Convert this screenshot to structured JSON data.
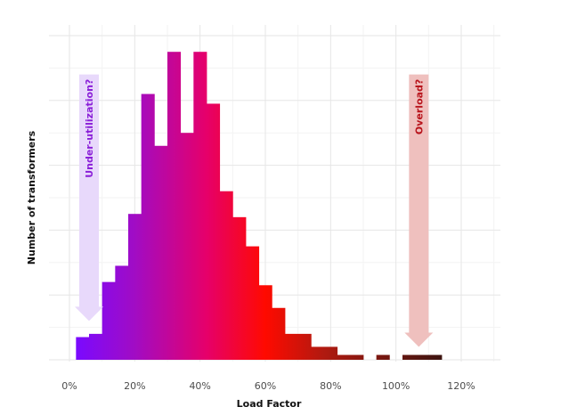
{
  "chart_data": {
    "type": "bar",
    "xlabel": "Load Factor",
    "ylabel": "Number of transformers",
    "xlim": [
      -6,
      132
    ],
    "ylim": [
      0,
      100
    ],
    "x_ticks": [
      0,
      20,
      40,
      60,
      80,
      100,
      120
    ],
    "x_tick_labels": [
      "0%",
      "20%",
      "40%",
      "60%",
      "80%",
      "100%",
      "120%"
    ],
    "grid": true,
    "bin_width": 4,
    "bins": [
      {
        "x0": 2,
        "x1": 6,
        "value": 7
      },
      {
        "x0": 6,
        "x1": 10,
        "value": 8
      },
      {
        "x0": 10,
        "x1": 14,
        "value": 24
      },
      {
        "x0": 14,
        "x1": 18,
        "value": 29
      },
      {
        "x0": 18,
        "x1": 22,
        "value": 45
      },
      {
        "x0": 22,
        "x1": 26,
        "value": 82
      },
      {
        "x0": 26,
        "x1": 30,
        "value": 66
      },
      {
        "x0": 30,
        "x1": 34,
        "value": 95
      },
      {
        "x0": 34,
        "x1": 38,
        "value": 70
      },
      {
        "x0": 38,
        "x1": 42,
        "value": 95
      },
      {
        "x0": 42,
        "x1": 46,
        "value": 79
      },
      {
        "x0": 46,
        "x1": 50,
        "value": 52
      },
      {
        "x0": 50,
        "x1": 54,
        "value": 44
      },
      {
        "x0": 54,
        "x1": 58,
        "value": 35
      },
      {
        "x0": 58,
        "x1": 62,
        "value": 23
      },
      {
        "x0": 62,
        "x1": 66,
        "value": 16
      },
      {
        "x0": 66,
        "x1": 74,
        "value": 8
      },
      {
        "x0": 74,
        "x1": 82,
        "value": 4
      },
      {
        "x0": 82,
        "x1": 90,
        "value": 1.5
      },
      {
        "x0": 94,
        "x1": 98,
        "value": 1.5
      },
      {
        "x0": 102,
        "x1": 114,
        "value": 1.5
      }
    ],
    "colors": {
      "gradient": [
        "#7a0aff",
        "#a10cc4",
        "#e6006a",
        "#ff0a00",
        "#b01a10",
        "#3d1410"
      ],
      "gradient_stops_x": [
        2,
        20,
        42,
        60,
        78,
        114
      ]
    },
    "annotations": [
      {
        "text": "Under-utilization?",
        "x": 6,
        "y_top": 88,
        "y_bottom": 12,
        "arrow_color": "#e8d9fb",
        "text_color": "#8a1fd8"
      },
      {
        "text": "Overload?",
        "x": 107,
        "y_top": 88,
        "y_bottom": 4,
        "arrow_color": "#efc0be",
        "text_color": "#b8141c"
      }
    ]
  }
}
